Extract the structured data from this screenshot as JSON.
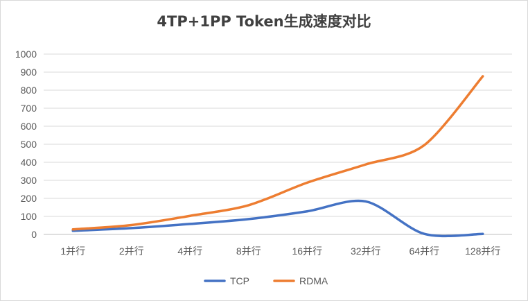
{
  "chart_data": {
    "type": "line",
    "title": "4TP+1PP Token生成速度对比",
    "xlabel": "",
    "ylabel": "",
    "categories": [
      "1并行",
      "2并行",
      "4并行",
      "8并行",
      "16并行",
      "32并行",
      "64并行",
      "128并行"
    ],
    "ylim": [
      0,
      1000
    ],
    "yticks": [
      0,
      100,
      200,
      300,
      400,
      500,
      600,
      700,
      800,
      900,
      1000
    ],
    "grid": true,
    "legend": "bottom",
    "series": [
      {
        "name": "TCP",
        "color": "#4472C4",
        "values": [
          20,
          35,
          58,
          85,
          128,
          183,
          3,
          3
        ]
      },
      {
        "name": "RDMA",
        "color": "#ED7D31",
        "values": [
          28,
          52,
          103,
          162,
          287,
          388,
          495,
          877
        ]
      }
    ]
  }
}
